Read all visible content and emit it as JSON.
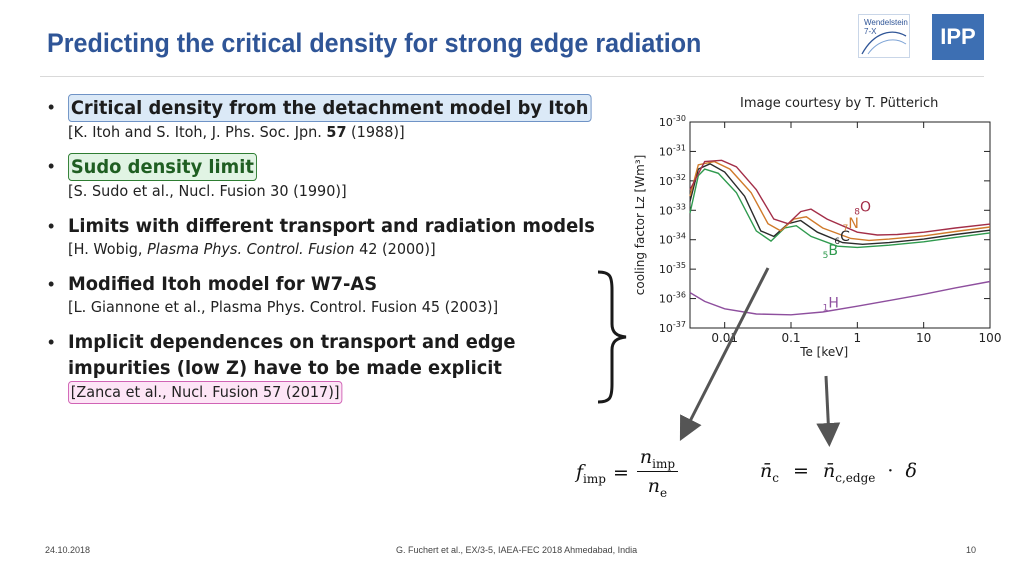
{
  "slide": {
    "title": "Predicting the critical density for strong edge radiation",
    "image_credit": "Image courtesy by T. Pütterich"
  },
  "logos": {
    "w7x_line1": "Wendelstein",
    "w7x_line2": "7-X",
    "ipp": "IPP"
  },
  "bullets": [
    {
      "main": "Critical density from the detachment model by Itoh",
      "ref_pre": "[K. Itoh and S. Itoh, J. Phs. Soc. Jpn. ",
      "ref_bold": "57",
      "ref_post": " (1988)]"
    },
    {
      "main": "Sudo density limit",
      "ref": "[S. Sudo et al., Nucl. Fusion 30 (1990)]"
    },
    {
      "main": "Limits with different transport and radiation models",
      "ref_pre": "[H. Wobig, ",
      "ref_ital": "Plasma Phys. Control. Fusion",
      "ref_post": " 42 (2000)]"
    },
    {
      "main": "Modified Itoh model for W7-AS",
      "ref": "[L. Giannone et al., Plasma Phys. Control. Fusion 45 (2003)]"
    },
    {
      "main_line1": "Implicit dependences on transport and edge",
      "main_line2": "impurities (low Z) have to be made explicit",
      "ref": "[Zanca et al., Nucl. Fusion 57 (2017)]"
    }
  ],
  "chart_data": {
    "type": "line",
    "xlabel": "Te [keV]",
    "ylabel": "cooling factor Lz [Wm³]",
    "xscale": "log",
    "yscale": "log",
    "xlim": [
      0.003,
      100
    ],
    "ylim": [
      1e-37,
      1e-30
    ],
    "x_tick_labels": [
      "0.01",
      "0.1",
      "1",
      "10",
      "100"
    ],
    "y_tick_labels": [
      {
        "base": "10",
        "exp": "-30"
      },
      {
        "base": "10",
        "exp": "-31"
      },
      {
        "base": "10",
        "exp": "-32"
      },
      {
        "base": "10",
        "exp": "-33"
      },
      {
        "base": "10",
        "exp": "-34"
      },
      {
        "base": "10",
        "exp": "-35"
      },
      {
        "base": "10",
        "exp": "-36"
      },
      {
        "base": "10",
        "exp": "-37"
      }
    ],
    "series": [
      {
        "name": "H",
        "z": "1",
        "color": "#8e4f9e",
        "points": [
          [
            0.003,
            1.6e-36
          ],
          [
            0.005,
            8e-37
          ],
          [
            0.01,
            4.5e-37
          ],
          [
            0.03,
            3e-37
          ],
          [
            0.1,
            2.8e-37
          ],
          [
            0.3,
            3.5e-37
          ],
          [
            1,
            5.5e-37
          ],
          [
            3,
            8.5e-37
          ],
          [
            10,
            1.4e-36
          ],
          [
            30,
            2.3e-36
          ],
          [
            100,
            3.8e-36
          ]
        ]
      },
      {
        "name": "B",
        "z": "5",
        "color": "#2f9a4e",
        "points": [
          [
            0.003,
            8e-34
          ],
          [
            0.004,
            1.5e-32
          ],
          [
            0.005,
            2.5e-32
          ],
          [
            0.008,
            1.8e-32
          ],
          [
            0.015,
            4e-33
          ],
          [
            0.03,
            2e-34
          ],
          [
            0.05,
            9e-35
          ],
          [
            0.08,
            2.5e-34
          ],
          [
            0.12,
            3e-34
          ],
          [
            0.2,
            1.3e-34
          ],
          [
            0.5,
            6e-35
          ],
          [
            1,
            5.5e-35
          ],
          [
            3,
            6.5e-35
          ],
          [
            10,
            8.5e-35
          ],
          [
            30,
            1.2e-34
          ],
          [
            100,
            1.7e-34
          ]
        ]
      },
      {
        "name": "C",
        "z": "6",
        "color": "#2b2b2b",
        "points": [
          [
            0.003,
            2e-33
          ],
          [
            0.004,
            2.5e-32
          ],
          [
            0.006,
            3.8e-32
          ],
          [
            0.01,
            2e-32
          ],
          [
            0.02,
            3e-33
          ],
          [
            0.035,
            2e-34
          ],
          [
            0.055,
            1.3e-34
          ],
          [
            0.09,
            3.5e-34
          ],
          [
            0.14,
            4.5e-34
          ],
          [
            0.25,
            1.8e-34
          ],
          [
            0.6,
            8e-35
          ],
          [
            1.2,
            7e-35
          ],
          [
            3,
            8e-35
          ],
          [
            10,
            1.05e-34
          ],
          [
            30,
            1.5e-34
          ],
          [
            100,
            2.1e-34
          ]
        ]
      },
      {
        "name": "N",
        "z": "7",
        "color": "#d07a2a",
        "points": [
          [
            0.003,
            3e-33
          ],
          [
            0.004,
            3.5e-32
          ],
          [
            0.007,
            4.5e-32
          ],
          [
            0.012,
            2.5e-32
          ],
          [
            0.025,
            4e-33
          ],
          [
            0.045,
            3.5e-34
          ],
          [
            0.07,
            2e-34
          ],
          [
            0.11,
            5e-34
          ],
          [
            0.17,
            6e-34
          ],
          [
            0.3,
            2.5e-34
          ],
          [
            0.8,
            1.1e-34
          ],
          [
            1.5,
            9.5e-35
          ],
          [
            3,
            1.05e-34
          ],
          [
            10,
            1.35e-34
          ],
          [
            30,
            1.9e-34
          ],
          [
            100,
            2.7e-34
          ]
        ]
      },
      {
        "name": "O",
        "z": "8",
        "color": "#a32e48",
        "points": [
          [
            0.003,
            5e-33
          ],
          [
            0.005,
            4.5e-32
          ],
          [
            0.009,
            5e-32
          ],
          [
            0.015,
            3e-32
          ],
          [
            0.03,
            5e-33
          ],
          [
            0.055,
            5e-34
          ],
          [
            0.09,
            3.5e-34
          ],
          [
            0.14,
            9e-34
          ],
          [
            0.2,
            1.1e-33
          ],
          [
            0.35,
            5e-34
          ],
          [
            1,
            1.8e-34
          ],
          [
            2,
            1.45e-34
          ],
          [
            4,
            1.5e-34
          ],
          [
            10,
            1.8e-34
          ],
          [
            30,
            2.5e-34
          ],
          [
            100,
            3.4e-34
          ]
        ]
      }
    ]
  },
  "formulas": {
    "f": "f",
    "f_sub": "imp",
    "eq": "=",
    "num": "n",
    "num_sub": "imp",
    "den": "n",
    "den_sub": "e",
    "nc": "n̄",
    "nc_sub": "c",
    "nce": "n̄",
    "nce_sub": "c,edge",
    "dot": "·",
    "delta": "δ"
  },
  "footer": {
    "date": "24.10.2018",
    "center": "G. Fuchert et al., EX/3-5, IAEA-FEC 2018 Ahmedabad, India",
    "page": "10"
  },
  "colors": {
    "title": "#2f5597",
    "arrow": "#555555"
  }
}
